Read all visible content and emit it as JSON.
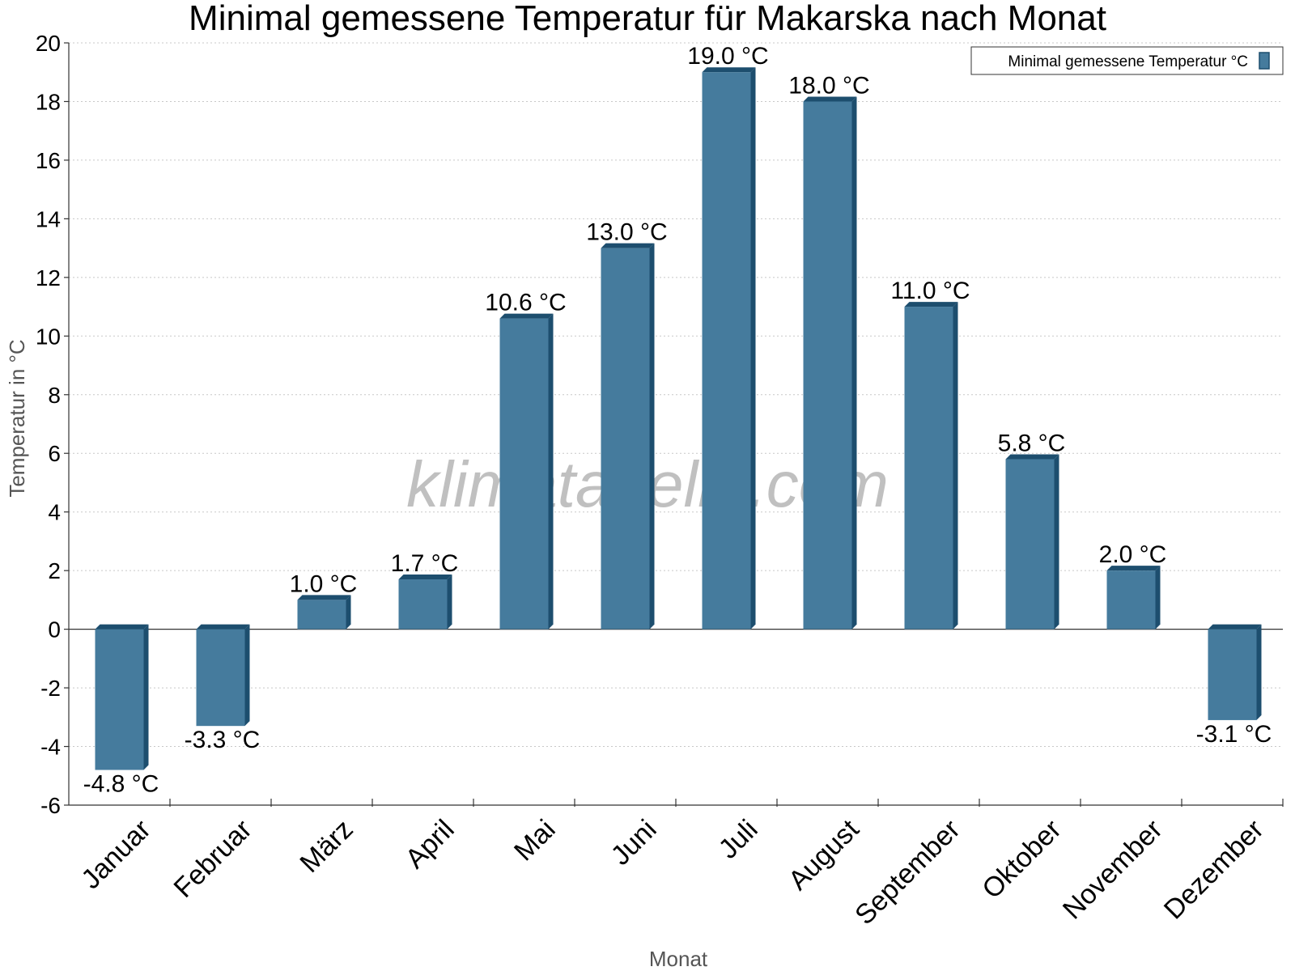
{
  "chart_data": {
    "type": "bar",
    "title": "Minimal gemessene Temperatur für Makarska nach Monat",
    "xlabel": "Monat",
    "ylabel": "Temperatur in °C",
    "categories": [
      "Januar",
      "Februar",
      "März",
      "April",
      "Mai",
      "Juni",
      "Juli",
      "August",
      "September",
      "Oktober",
      "November",
      "Dezember"
    ],
    "series": [
      {
        "name": "Minimal gemessene Temperatur °C",
        "values": [
          -4.8,
          -3.3,
          1.0,
          1.7,
          10.6,
          13.0,
          19.0,
          18.0,
          11.0,
          5.8,
          2.0,
          -3.1
        ],
        "labels": [
          "-4.8 °C",
          "-3.3 °C",
          "1.0 °C",
          "1.7 °C",
          "10.6 °C",
          "13.0 °C",
          "19.0 °C",
          "18.0 °C",
          "11.0 °C",
          "5.8 °C",
          "2.0 °C",
          "-3.1 °C"
        ]
      }
    ],
    "ylim": [
      -6,
      20
    ],
    "yticks": [
      -6,
      -4,
      -2,
      0,
      2,
      4,
      6,
      8,
      10,
      12,
      14,
      16,
      18,
      20
    ],
    "grid": true,
    "legend": "top-right",
    "colors": {
      "bar": "#457b9d",
      "bar_side": "#1d4e6e"
    },
    "watermark": "klimatabelle.com"
  }
}
